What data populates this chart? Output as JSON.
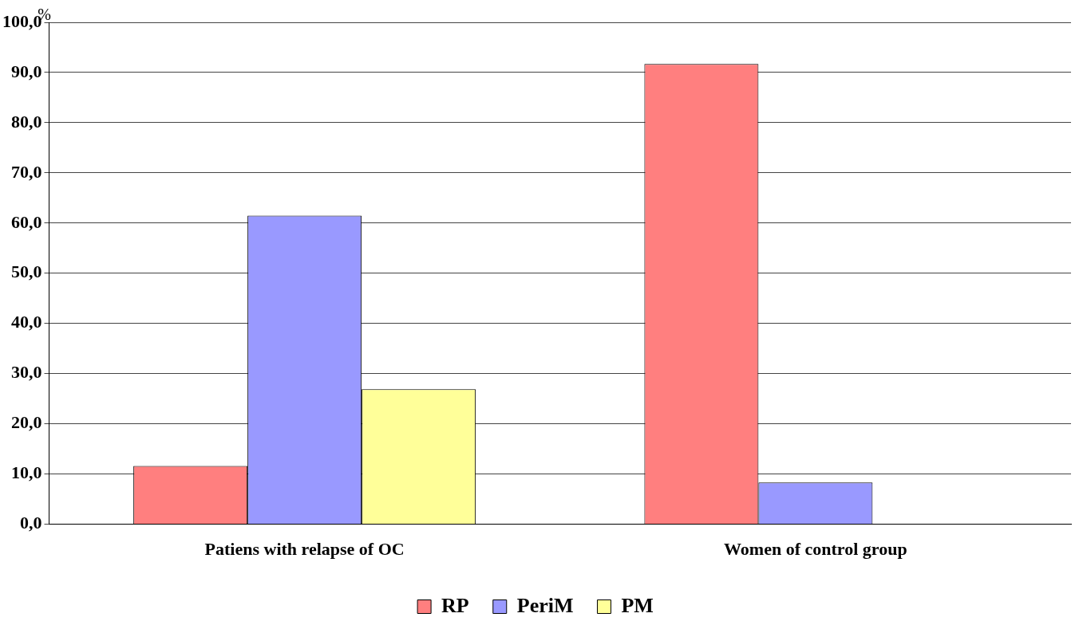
{
  "chart_data": {
    "type": "bar",
    "ylabel": "%",
    "categories": [
      "Patiens with relapse of OC",
      "Women of control group"
    ],
    "series": [
      {
        "name": "RP",
        "color": "#ff7f7f",
        "values": [
          11.6,
          91.7
        ]
      },
      {
        "name": "PeriM",
        "color": "#9999ff",
        "values": [
          61.5,
          8.3
        ]
      },
      {
        "name": "PM",
        "color": "#ffff99",
        "values": [
          26.9,
          0
        ]
      }
    ],
    "ylim": [
      0,
      100
    ],
    "yticks": [
      {
        "value": 0,
        "label": "0,0"
      },
      {
        "value": 10,
        "label": "10,0"
      },
      {
        "value": 20,
        "label": "20,0"
      },
      {
        "value": 30,
        "label": "30,0"
      },
      {
        "value": 40,
        "label": "40,0"
      },
      {
        "value": 50,
        "label": "50,0"
      },
      {
        "value": 60,
        "label": "60,0"
      },
      {
        "value": 70,
        "label": "70,0"
      },
      {
        "value": 80,
        "label": "80,0"
      },
      {
        "value": 90,
        "label": "90,0"
      },
      {
        "value": 100,
        "label": "100,0"
      }
    ],
    "grid": "y",
    "legend": "bottom"
  }
}
